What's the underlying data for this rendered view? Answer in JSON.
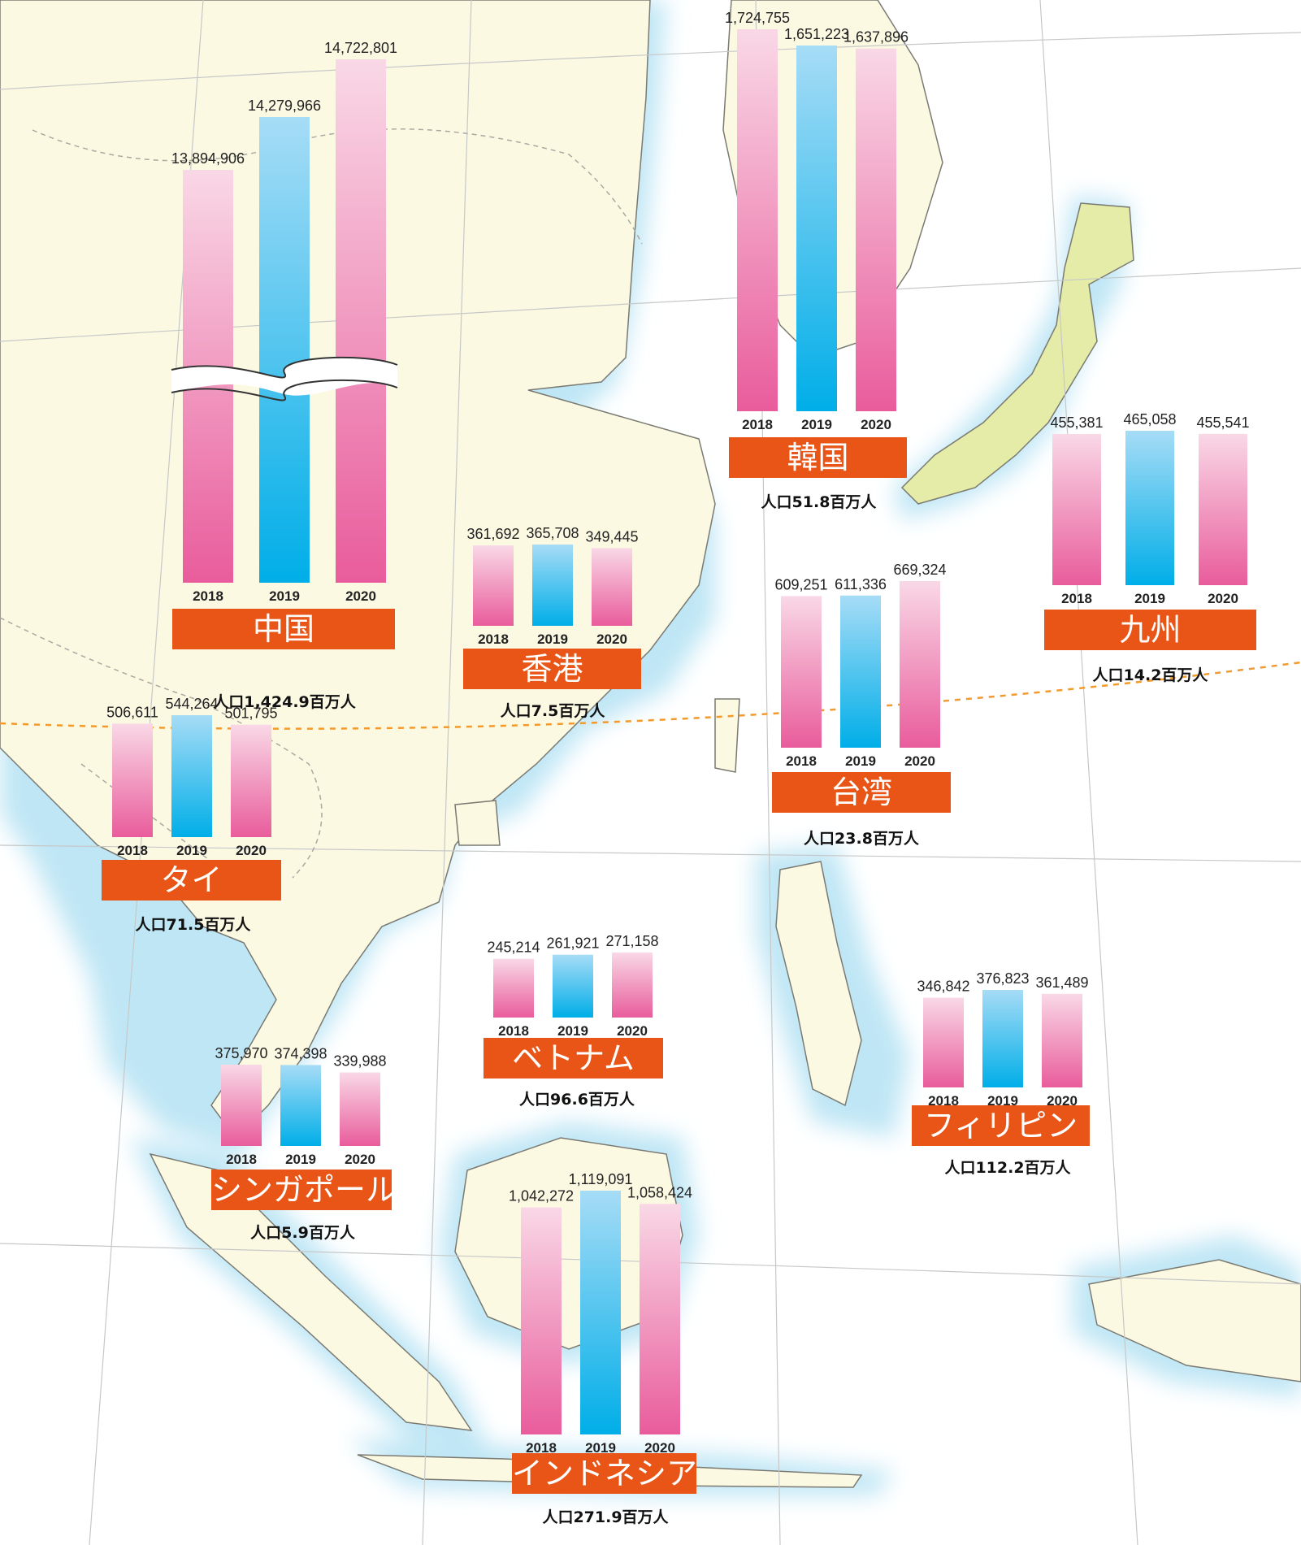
{
  "colors": {
    "bar_pink_top": "#f9d8e6",
    "bar_pink_bottom": "#e95c9c",
    "bar_blue_top": "#a6dcf6",
    "bar_blue_bottom": "#00aee8",
    "label_background": "#e95516",
    "label_text": "#ffffff"
  },
  "chart_data": [
    {
      "type": "bar",
      "title": "中国",
      "subtitle": "人口1,424.9百万人",
      "categories": [
        "2018",
        "2019",
        "2020"
      ],
      "values": [
        13894906,
        14279966,
        14722801
      ],
      "value_labels": [
        "13,894,906",
        "14,279,966",
        "14,722,801"
      ],
      "axis_break": true
    },
    {
      "type": "bar",
      "title": "韓国",
      "subtitle": "人口51.8百万人",
      "categories": [
        "2018",
        "2019",
        "2020"
      ],
      "values": [
        1724755,
        1651223,
        1637896
      ],
      "value_labels": [
        "1,724,755",
        "1,651,223",
        "1,637,896"
      ]
    },
    {
      "type": "bar",
      "title": "九州",
      "subtitle": "人口14.2百万人",
      "categories": [
        "2018",
        "2019",
        "2020"
      ],
      "values": [
        455381,
        465058,
        455541
      ],
      "value_labels": [
        "455,381",
        "465,058",
        "455,541"
      ]
    },
    {
      "type": "bar",
      "title": "香港",
      "subtitle": "人口7.5百万人",
      "categories": [
        "2018",
        "2019",
        "2020"
      ],
      "values": [
        361692,
        365708,
        349445
      ],
      "value_labels": [
        "361,692",
        "365,708",
        "349,445"
      ]
    },
    {
      "type": "bar",
      "title": "台湾",
      "subtitle": "人口23.8百万人",
      "categories": [
        "2018",
        "2019",
        "2020"
      ],
      "values": [
        609251,
        611336,
        669324
      ],
      "value_labels": [
        "609,251",
        "611,336",
        "669,324"
      ]
    },
    {
      "type": "bar",
      "title": "タイ",
      "subtitle": "人口71.5百万人",
      "categories": [
        "2018",
        "2019",
        "2020"
      ],
      "values": [
        506611,
        544264,
        501795
      ],
      "value_labels": [
        "506,611",
        "544,264",
        "501,795"
      ]
    },
    {
      "type": "bar",
      "title": "ベトナム",
      "subtitle": "人口96.6百万人",
      "categories": [
        "2018",
        "2019",
        "2020"
      ],
      "values": [
        245214,
        261921,
        271158
      ],
      "value_labels": [
        "245,214",
        "261,921",
        "271,158"
      ]
    },
    {
      "type": "bar",
      "title": "フィリピン",
      "subtitle": "人口112.2百万人",
      "categories": [
        "2018",
        "2019",
        "2020"
      ],
      "values": [
        346842,
        376823,
        361489
      ],
      "value_labels": [
        "346,842",
        "376,823",
        "361,489"
      ]
    },
    {
      "type": "bar",
      "title": "シンガポール",
      "subtitle": "人口5.9百万人",
      "categories": [
        "2018",
        "2019",
        "2020"
      ],
      "values": [
        375970,
        374398,
        339988
      ],
      "value_labels": [
        "375,970",
        "374,398",
        "339,988"
      ]
    },
    {
      "type": "bar",
      "title": "インドネシア",
      "subtitle": "人口271.9百万人",
      "categories": [
        "2018",
        "2019",
        "2020"
      ],
      "values": [
        1042272,
        1119091,
        1058424
      ],
      "value_labels": [
        "1,042,272",
        "1,119,091",
        "1,058,424"
      ]
    }
  ]
}
